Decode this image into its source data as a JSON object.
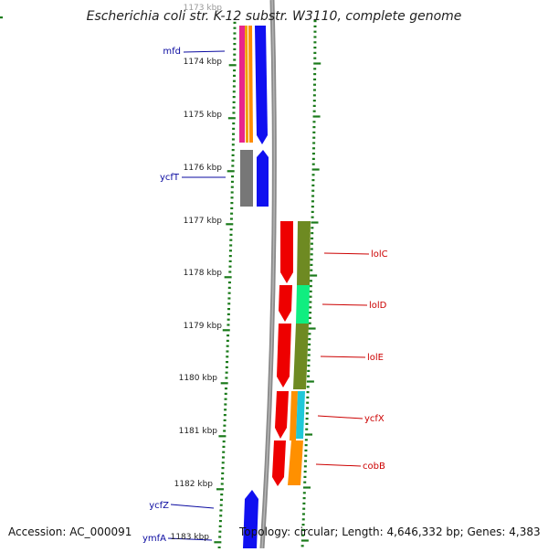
{
  "title": "Escherichia coli str. K-12 substr. W3110, complete genome",
  "footer": {
    "accession": "Accession: AC_000091",
    "summary": "Topology: circular; Length: 4,646,332 bp; Genes: 4,383"
  },
  "colors": {
    "tick": "#1a7a1a",
    "gene_label_left": "#0a0aa0",
    "gene_label_right": "#cc0000",
    "backbone": "#888888"
  },
  "scale_labels": [
    "1173 kbp",
    "1174 kbp",
    "1175 kbp",
    "1176 kbp",
    "1177 kbp",
    "1178 kbp",
    "1179 kbp",
    "1180 kbp",
    "1181 kbp",
    "1182 kbp",
    "1183 kbp"
  ],
  "gene_labels_left": [
    "mfd",
    "ycfT",
    "ycfZ",
    "ymfA"
  ],
  "gene_labels_right": [
    "lolC",
    "lolD",
    "lolE",
    "ycfX",
    "cobB"
  ]
}
